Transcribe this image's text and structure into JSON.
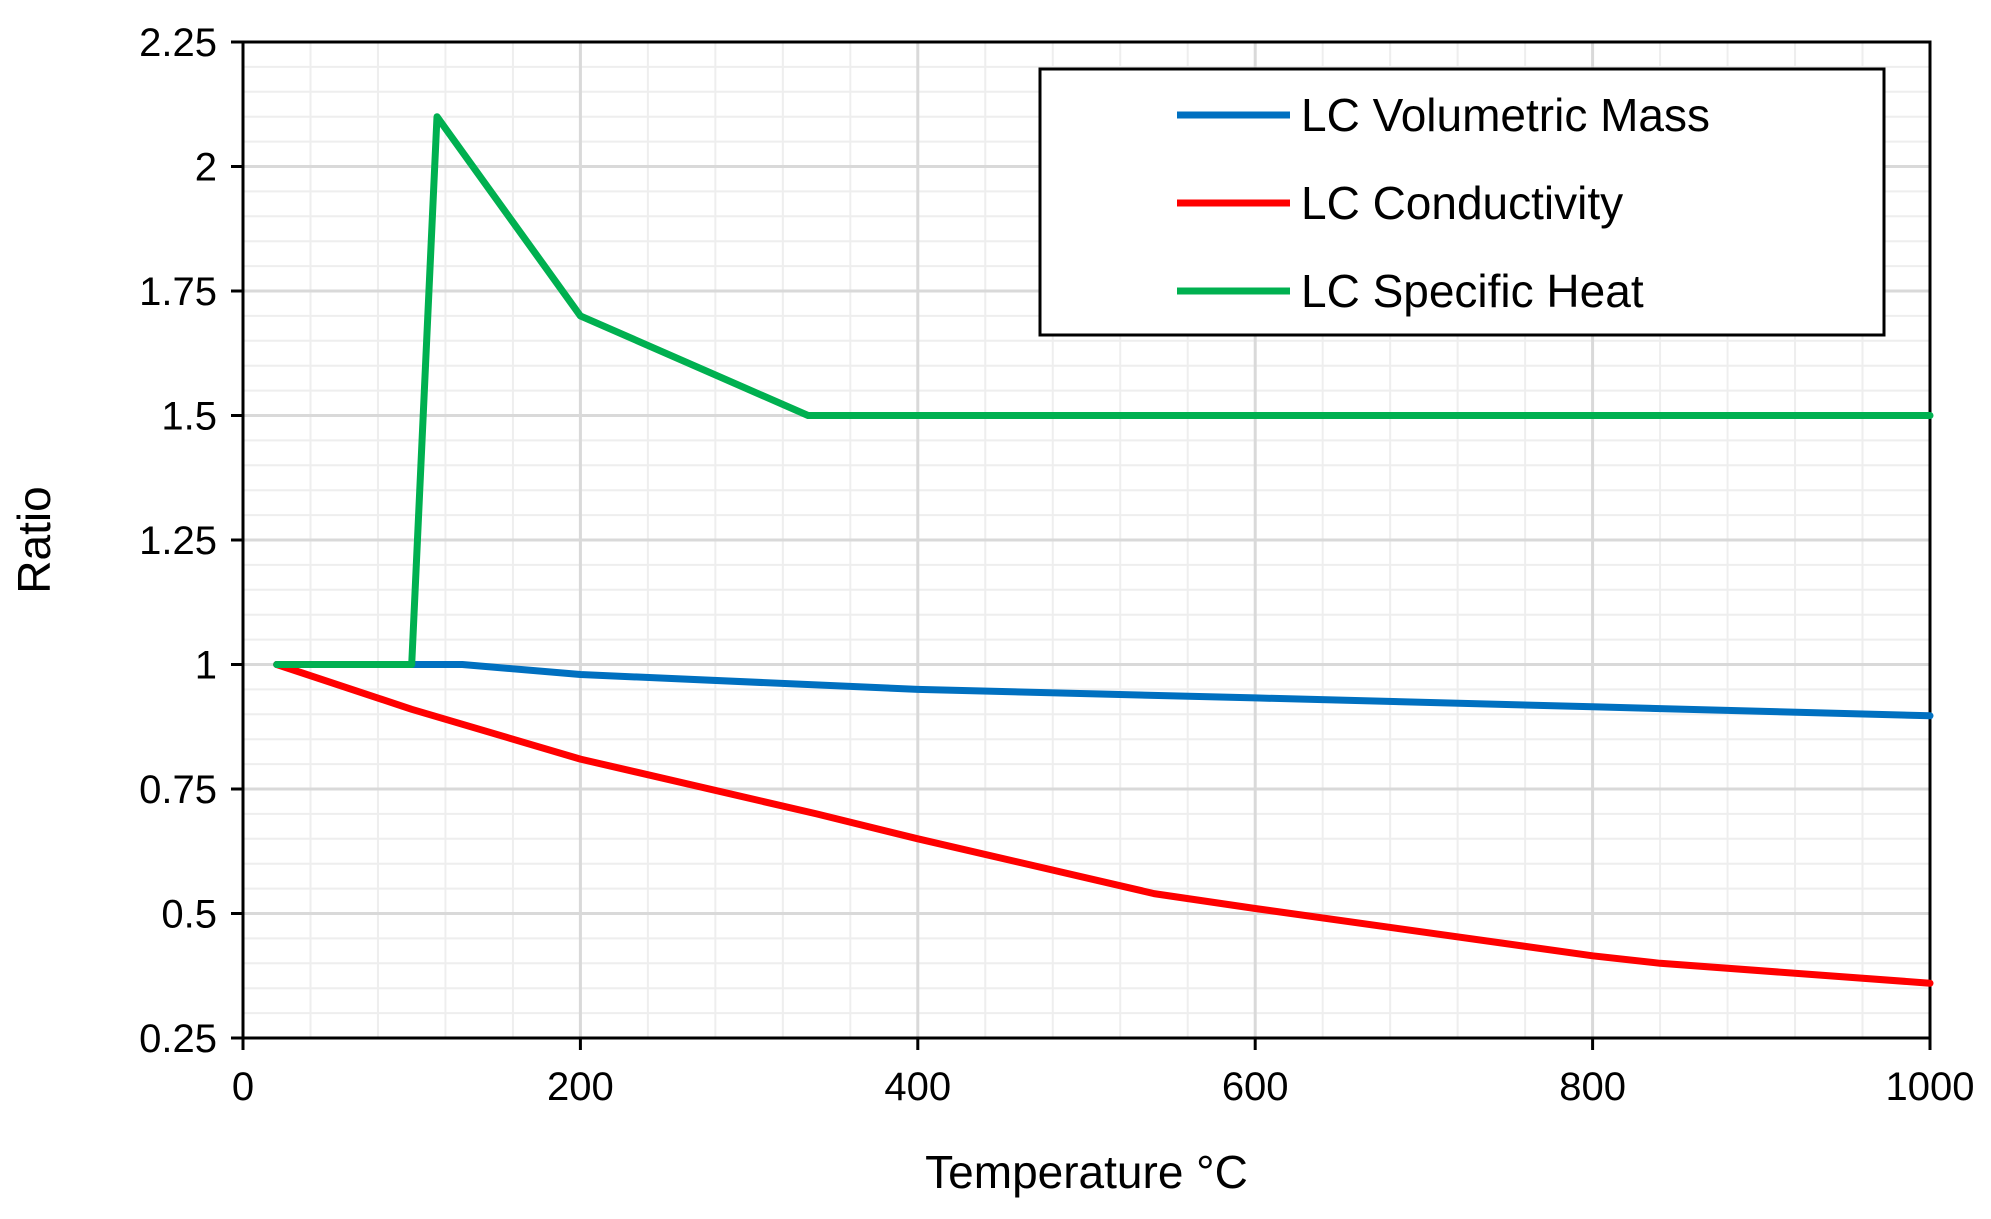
{
  "chart_data": {
    "type": "line",
    "title": "",
    "xlabel": "Temperature °C",
    "ylabel": "Ratio",
    "xlim": [
      0,
      1000
    ],
    "ylim": [
      0.25,
      2.25
    ],
    "x_ticks": [
      0,
      200,
      400,
      600,
      800,
      1000
    ],
    "x_tick_labels": [
      "0",
      "200",
      "400",
      "600",
      "800",
      "1000"
    ],
    "y_ticks": [
      0.25,
      0.5,
      0.75,
      1,
      1.25,
      1.5,
      1.75,
      2,
      2.25
    ],
    "y_tick_labels": [
      "0.25",
      "0.5",
      "0.75",
      "1",
      "1.25",
      "1.5",
      "1.75",
      "2",
      "2.25"
    ],
    "x_minor_step": 40,
    "y_minor_step": 0.05,
    "grid": true,
    "legend_position": "top-right",
    "series": [
      {
        "name": "LC Volumetric Mass",
        "color": "#0070C0",
        "x": [
          20,
          100,
          130,
          200,
          400,
          600,
          800,
          1000
        ],
        "y": [
          1.0,
          1.0,
          1.0,
          0.98,
          0.95,
          0.933,
          0.915,
          0.897
        ]
      },
      {
        "name": "LC Conductivity",
        "color": "#FF0000",
        "x": [
          20,
          100,
          200,
          340,
          400,
          540,
          600,
          800,
          840,
          1000
        ],
        "y": [
          1.0,
          0.91,
          0.81,
          0.7,
          0.65,
          0.54,
          0.51,
          0.415,
          0.4,
          0.36
        ]
      },
      {
        "name": "LC Specific Heat",
        "color": "#00B050",
        "x": [
          20,
          100,
          115,
          200,
          335,
          1000
        ],
        "y": [
          1.0,
          1.0,
          2.1,
          1.7,
          1.5,
          1.5
        ]
      }
    ]
  }
}
